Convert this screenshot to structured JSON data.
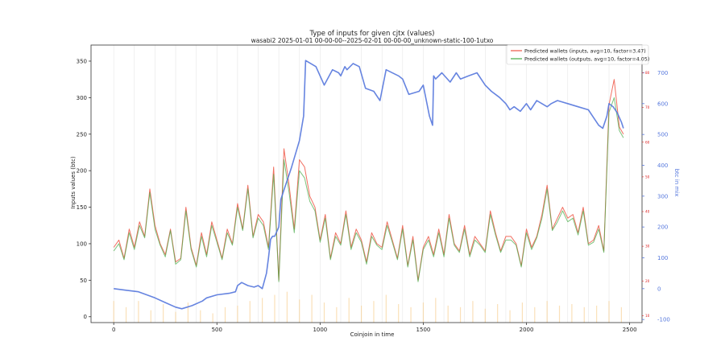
{
  "chart_data": {
    "type": "line",
    "title": "Type of inputs for given cjtx (values)",
    "subtitle": "wasabi2 2025-01-01 00-00-00--2025-02-01 00-00-00_unknown-static-100-1utxo",
    "xlabel": "Coinjoin in time",
    "ylabel": "Inputs values (btc)",
    "y2label": "btc in mix",
    "x_ticks": [
      0,
      500,
      1000,
      1500,
      2000,
      2500
    ],
    "y_ticks": [
      0,
      50,
      100,
      150,
      200,
      250,
      300,
      350
    ],
    "y2_ticks": [
      -100,
      0,
      100,
      200,
      300,
      400,
      500,
      600,
      700
    ],
    "y3_ticks": [
      10,
      20,
      30,
      40,
      50,
      60,
      70,
      80
    ],
    "xlim": [
      -110,
      2560
    ],
    "ylim": [
      -8,
      372
    ],
    "y2lim": [
      -110,
      790
    ],
    "y3lim": [
      8,
      88
    ],
    "grid": "vertical",
    "legend_position": "top-right",
    "colors": {
      "inputs": "#ee5544",
      "outputs": "#44aa44",
      "btc_in_mix": "#5577dd",
      "y3_axis": "#dd2222",
      "background_bars": "#f5c77e"
    },
    "series": [
      {
        "name": "Predicted wallets (inputs, avg=10, factor=3.47)",
        "axis": "y",
        "x": [
          0,
          25,
          50,
          75,
          100,
          125,
          150,
          175,
          200,
          225,
          250,
          275,
          300,
          325,
          350,
          375,
          400,
          425,
          450,
          475,
          500,
          525,
          550,
          575,
          600,
          625,
          650,
          675,
          700,
          725,
          750,
          775,
          800,
          825,
          850,
          875,
          900,
          925,
          950,
          975,
          1000,
          1025,
          1050,
          1075,
          1100,
          1125,
          1150,
          1175,
          1200,
          1225,
          1250,
          1275,
          1300,
          1325,
          1350,
          1375,
          1400,
          1425,
          1450,
          1475,
          1500,
          1525,
          1550,
          1575,
          1600,
          1625,
          1650,
          1675,
          1700,
          1725,
          1750,
          1775,
          1800,
          1825,
          1850,
          1875,
          1900,
          1925,
          1950,
          1975,
          2000,
          2025,
          2050,
          2075,
          2100,
          2125,
          2150,
          2175,
          2200,
          2225,
          2250,
          2275,
          2300,
          2325,
          2350,
          2375,
          2400,
          2425,
          2450,
          2470
        ],
        "values": [
          95,
          105,
          80,
          120,
          95,
          130,
          110,
          175,
          125,
          100,
          85,
          120,
          75,
          80,
          150,
          95,
          70,
          115,
          85,
          130,
          105,
          80,
          120,
          100,
          155,
          120,
          180,
          110,
          140,
          130,
          95,
          205,
          50,
          230,
          180,
          120,
          215,
          205,
          165,
          150,
          105,
          140,
          80,
          115,
          100,
          145,
          95,
          120,
          105,
          75,
          115,
          100,
          95,
          130,
          105,
          80,
          125,
          70,
          110,
          50,
          95,
          110,
          85,
          120,
          85,
          140,
          100,
          90,
          125,
          85,
          110,
          100,
          90,
          145,
          115,
          90,
          110,
          110,
          100,
          70,
          120,
          95,
          110,
          140,
          180,
          120,
          135,
          150,
          135,
          140,
          115,
          150,
          100,
          105,
          125,
          90,
          290,
          325,
          260,
          250
        ]
      },
      {
        "name": "Predicted wallets (outputs, avg=10, factor=4.05)",
        "axis": "y",
        "x": [
          0,
          25,
          50,
          75,
          100,
          125,
          150,
          175,
          200,
          225,
          250,
          275,
          300,
          325,
          350,
          375,
          400,
          425,
          450,
          475,
          500,
          525,
          550,
          575,
          600,
          625,
          650,
          675,
          700,
          725,
          750,
          775,
          800,
          825,
          850,
          875,
          900,
          925,
          950,
          975,
          1000,
          1025,
          1050,
          1075,
          1100,
          1125,
          1150,
          1175,
          1200,
          1225,
          1250,
          1275,
          1300,
          1325,
          1350,
          1375,
          1400,
          1425,
          1450,
          1475,
          1500,
          1525,
          1550,
          1575,
          1600,
          1625,
          1650,
          1675,
          1700,
          1725,
          1750,
          1775,
          1800,
          1825,
          1850,
          1875,
          1900,
          1925,
          1950,
          1975,
          2000,
          2025,
          2050,
          2075,
          2100,
          2125,
          2150,
          2175,
          2200,
          2225,
          2250,
          2275,
          2300,
          2325,
          2350,
          2375,
          2400,
          2425,
          2450,
          2470
        ],
        "values": [
          90,
          100,
          78,
          115,
          92,
          125,
          108,
          170,
          120,
          98,
          82,
          118,
          72,
          78,
          145,
          92,
          68,
          110,
          82,
          125,
          102,
          78,
          115,
          98,
          150,
          118,
          175,
          108,
          135,
          125,
          92,
          195,
          48,
          215,
          170,
          115,
          200,
          190,
          158,
          145,
          102,
          135,
          78,
          110,
          98,
          140,
          92,
          115,
          102,
          72,
          110,
          98,
          92,
          125,
          102,
          78,
          120,
          68,
          105,
          48,
          92,
          105,
          82,
          115,
          82,
          135,
          98,
          88,
          120,
          82,
          105,
          98,
          88,
          140,
          112,
          88,
          105,
          105,
          98,
          68,
          115,
          92,
          108,
          135,
          175,
          118,
          130,
          145,
          130,
          135,
          112,
          145,
          98,
          102,
          120,
          88,
          280,
          300,
          255,
          245
        ]
      },
      {
        "name": "btc in mix",
        "axis": "y2",
        "x": [
          0,
          60,
          120,
          200,
          250,
          300,
          330,
          380,
          430,
          450,
          500,
          560,
          590,
          600,
          620,
          650,
          680,
          700,
          720,
          740,
          750,
          760,
          770,
          780,
          800,
          810,
          830,
          860,
          900,
          910,
          920,
          930,
          980,
          1020,
          1060,
          1090,
          1100,
          1120,
          1130,
          1160,
          1190,
          1220,
          1260,
          1280,
          1290,
          1320,
          1380,
          1400,
          1430,
          1480,
          1500,
          1530,
          1545,
          1550,
          1560,
          1590,
          1630,
          1660,
          1680,
          1720,
          1760,
          1800,
          1830,
          1870,
          1900,
          1920,
          1940,
          1970,
          2000,
          2020,
          2050,
          2100,
          2120,
          2150,
          2200,
          2250,
          2300,
          2320,
          2350,
          2370,
          2390,
          2400,
          2420,
          2440,
          2460,
          2470
        ],
        "values": [
          0,
          -5,
          -10,
          -30,
          -45,
          -60,
          -65,
          -55,
          -40,
          -30,
          -20,
          -15,
          -10,
          10,
          20,
          10,
          5,
          10,
          0,
          50,
          100,
          160,
          170,
          170,
          200,
          290,
          330,
          390,
          480,
          520,
          560,
          740,
          720,
          660,
          710,
          700,
          690,
          720,
          710,
          730,
          720,
          650,
          640,
          620,
          610,
          710,
          690,
          680,
          630,
          640,
          660,
          560,
          530,
          690,
          680,
          700,
          670,
          700,
          680,
          690,
          700,
          660,
          640,
          620,
          600,
          580,
          590,
          575,
          600,
          580,
          610,
          590,
          600,
          610,
          600,
          590,
          580,
          560,
          530,
          520,
          560,
          600,
          590,
          570,
          540,
          520
        ]
      }
    ],
    "background_bars": {
      "axis": "y2",
      "color": "#f5c77e",
      "note": "faint vertical bars near bottom",
      "x": [
        0,
        60,
        120,
        180,
        240,
        300,
        360,
        420,
        480,
        540,
        600,
        660,
        720,
        780,
        840,
        900,
        960,
        1020,
        1080,
        1140,
        1200,
        1260,
        1320,
        1380,
        1440,
        1500,
        1560,
        1620,
        1680,
        1740,
        1800,
        1860,
        1920,
        1980,
        2040,
        2100,
        2160,
        2220,
        2280,
        2340,
        2400,
        2460
      ],
      "values": [
        -40,
        -60,
        -40,
        -70,
        -50,
        -75,
        -45,
        -70,
        -80,
        -60,
        -55,
        -40,
        -30,
        -20,
        -10,
        -35,
        -20,
        -45,
        -60,
        -30,
        -55,
        -40,
        -20,
        -50,
        -60,
        -45,
        -30,
        -55,
        -60,
        -40,
        -65,
        -50,
        -70,
        -45,
        -60,
        -40,
        -55,
        -50,
        -60,
        -55,
        -40,
        -60
      ]
    },
    "legend": [
      "Predicted wallets (inputs, avg=10, factor=3.47)",
      "Predicted wallets (outputs, avg=10, factor=4.05)"
    ]
  }
}
